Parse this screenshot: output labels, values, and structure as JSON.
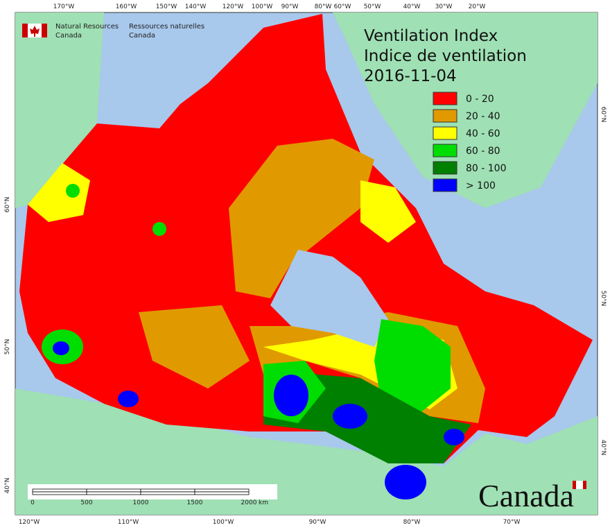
{
  "header": {
    "agency_en": [
      "Natural Resources",
      "Canada"
    ],
    "agency_fr": [
      "Ressources naturelles",
      "Canada"
    ]
  },
  "title": [
    "Ventilation Index",
    "Indice de ventilation"
  ],
  "date": "2016-11-04",
  "legend": [
    {
      "label": "0 - 20",
      "color": "#ff0000"
    },
    {
      "label": "20 - 40",
      "color": "#e09a00"
    },
    {
      "label": "40 - 60",
      "color": "#ffff00"
    },
    {
      "label": "60 - 80",
      "color": "#00dd00"
    },
    {
      "label": "80 - 100",
      "color": "#008000"
    },
    {
      "label": "> 100",
      "color": "#0000ff"
    }
  ],
  "top_labels": [
    "170°W",
    "160°W",
    "150°W",
    "140°W",
    "120°W",
    "100°W",
    "90°W",
    "80°W",
    "60°W",
    "50°W",
    "40°W",
    "30°W",
    "20°W"
  ],
  "bottom_labels": [
    "120°W",
    "110°W",
    "100°W",
    "90°W",
    "80°W",
    "70°W"
  ],
  "left_labels": [
    "60°N",
    "50°N",
    "40°N"
  ],
  "right_labels": [
    "60°N",
    "50°N",
    "40°N"
  ],
  "scale": {
    "ticks": [
      0,
      500,
      1000,
      1500,
      2000
    ],
    "unit": "km"
  },
  "wordmark": "Canada"
}
